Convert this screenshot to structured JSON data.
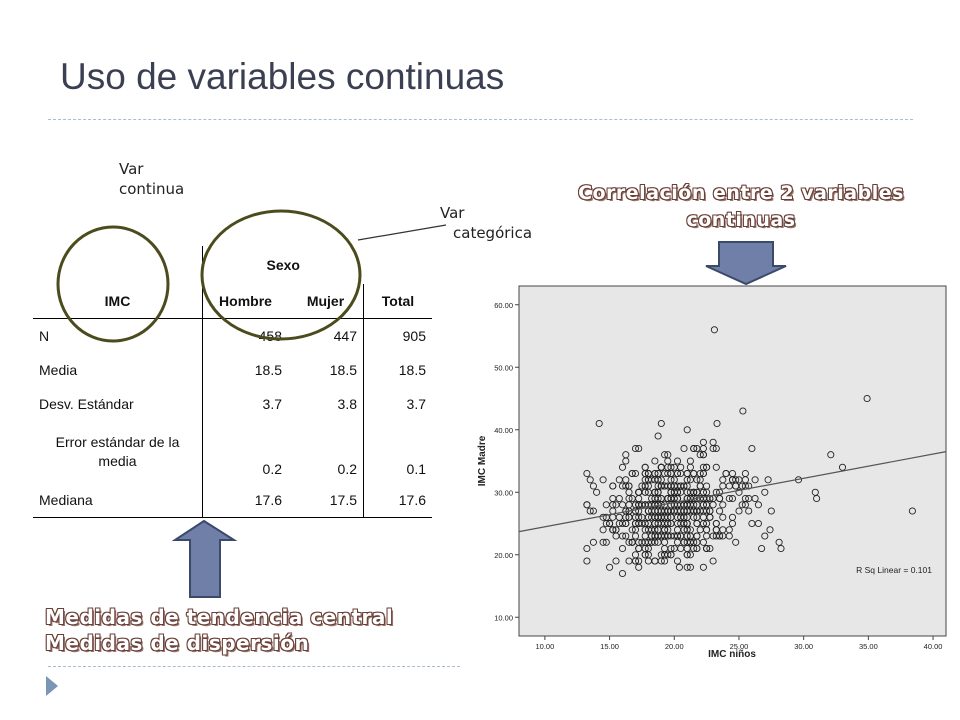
{
  "slide": {
    "title": "Uso de variables continuas",
    "note_continua": [
      "Var",
      "continua"
    ],
    "note_categorica": [
      "Var",
      "categórica"
    ],
    "heading_correlacion": [
      "Correlación entre 2 variables",
      "continuas"
    ],
    "heading_medidas": [
      "Medidas de tendencia central",
      "Medidas de dispersión"
    ]
  },
  "table": {
    "row_header": "IMC",
    "group_header": "Sexo",
    "columns": [
      "Hombre",
      "Mujer",
      "Total"
    ],
    "rows": [
      {
        "label": "N",
        "values": [
          "458",
          "447",
          "905"
        ]
      },
      {
        "label": "Media",
        "values": [
          "18.5",
          "18.5",
          "18.5"
        ]
      },
      {
        "label": "Desv. Estándar",
        "values": [
          "3.7",
          "3.8",
          "3.7"
        ]
      },
      {
        "label": "Error estándar de la media",
        "values": [
          "0.2",
          "0.2",
          "0.1"
        ]
      },
      {
        "label": "Mediana",
        "values": [
          "17.6",
          "17.5",
          "17.6"
        ]
      }
    ]
  },
  "colors": {
    "circle": "#4b4b1e",
    "arrow_fill": "#6f7fa8",
    "arrow_stroke": "#3b4a6b",
    "plot_bg": "#e7e7e7"
  },
  "chart_data": {
    "type": "scatter",
    "xlabel": "IMC niños",
    "ylabel": "IMC Madre",
    "xlim": [
      8,
      41
    ],
    "ylim": [
      7,
      63
    ],
    "xticks": [
      "10.00",
      "15.00",
      "20.00",
      "25.00",
      "30.00",
      "35.00",
      "40.00"
    ],
    "yticks": [
      "10.00",
      "20.00",
      "30.00",
      "40.00",
      "50.00",
      "60.00"
    ],
    "annotation": "R Sq Linear = 0.101",
    "fit_line": {
      "x": [
        8,
        41
      ],
      "y": [
        23.7,
        36.5
      ]
    },
    "grid": false,
    "outliers": [
      {
        "x": 23.1,
        "y": 56.0
      },
      {
        "x": 34.9,
        "y": 45.0
      },
      {
        "x": 25.3,
        "y": 43.0
      },
      {
        "x": 14.2,
        "y": 41.0
      },
      {
        "x": 38.4,
        "y": 27.0
      },
      {
        "x": 32.1,
        "y": 36.0
      },
      {
        "x": 33.0,
        "y": 34.0
      },
      {
        "x": 30.9,
        "y": 30.0
      },
      {
        "x": 29.6,
        "y": 32.0
      },
      {
        "x": 20.4,
        "y": 18.0
      },
      {
        "x": 16.0,
        "y": 17.0
      },
      {
        "x": 27.4,
        "y": 24.0
      },
      {
        "x": 28.1,
        "y": 22.0
      },
      {
        "x": 31.0,
        "y": 29.0
      },
      {
        "x": 26.0,
        "y": 37.0
      },
      {
        "x": 21.0,
        "y": 40.0
      },
      {
        "x": 23.3,
        "y": 41.0
      },
      {
        "x": 19.0,
        "y": 41.0
      }
    ],
    "cluster": {
      "x_center": 18.3,
      "x_spread": 3.5,
      "y_center": 27.0,
      "y_spread": 4.5,
      "count": 560
    }
  }
}
